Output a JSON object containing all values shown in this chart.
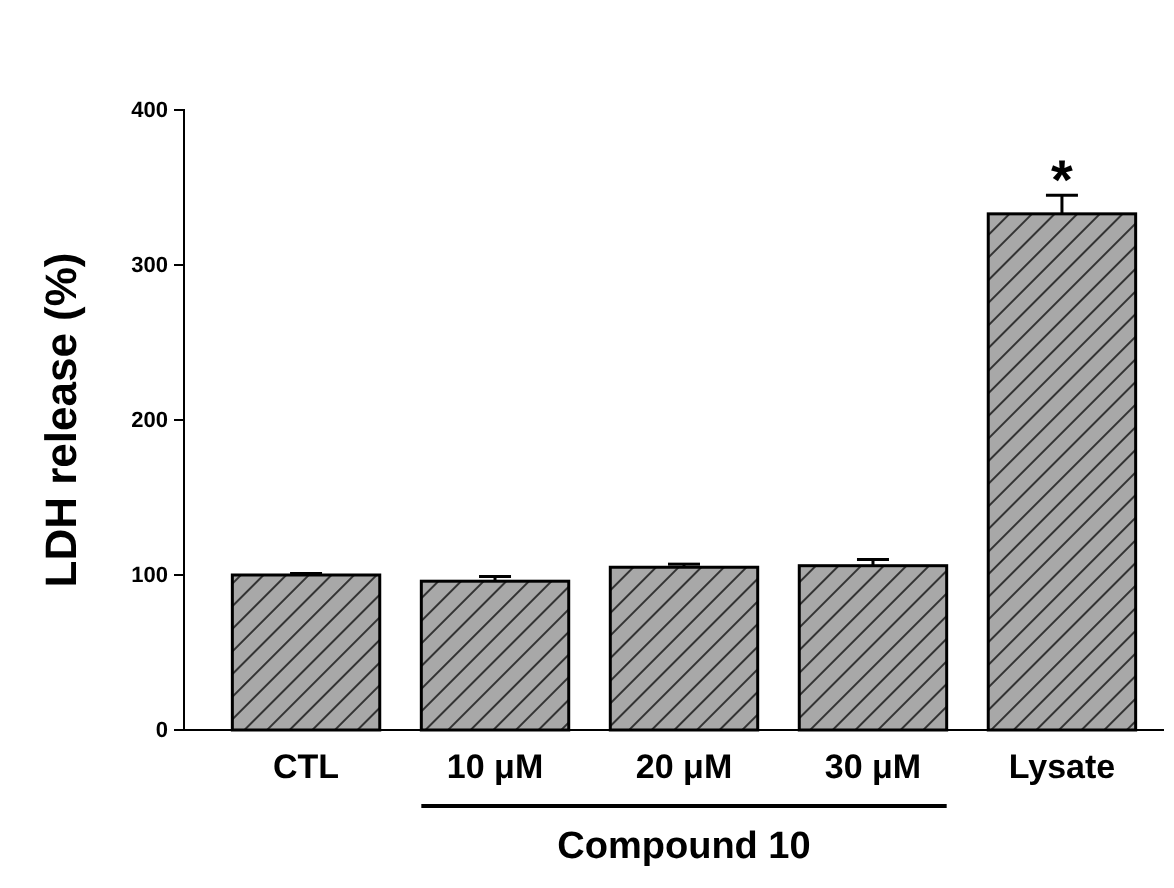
{
  "chart_data": {
    "type": "bar",
    "ylabel": "LDH release (%)",
    "categories": [
      "CTL",
      "10 μM",
      "20 μM",
      "30 μM",
      "Lysate"
    ],
    "values": [
      100,
      96,
      105,
      106,
      333
    ],
    "errors": [
      1,
      3,
      2,
      4,
      12
    ],
    "color": "#a8a8a8",
    "ylim": [
      0,
      400
    ],
    "yticks": [
      0,
      100,
      200,
      300,
      400
    ],
    "annotations": [
      "*",
      "Compound 10"
    ]
  }
}
